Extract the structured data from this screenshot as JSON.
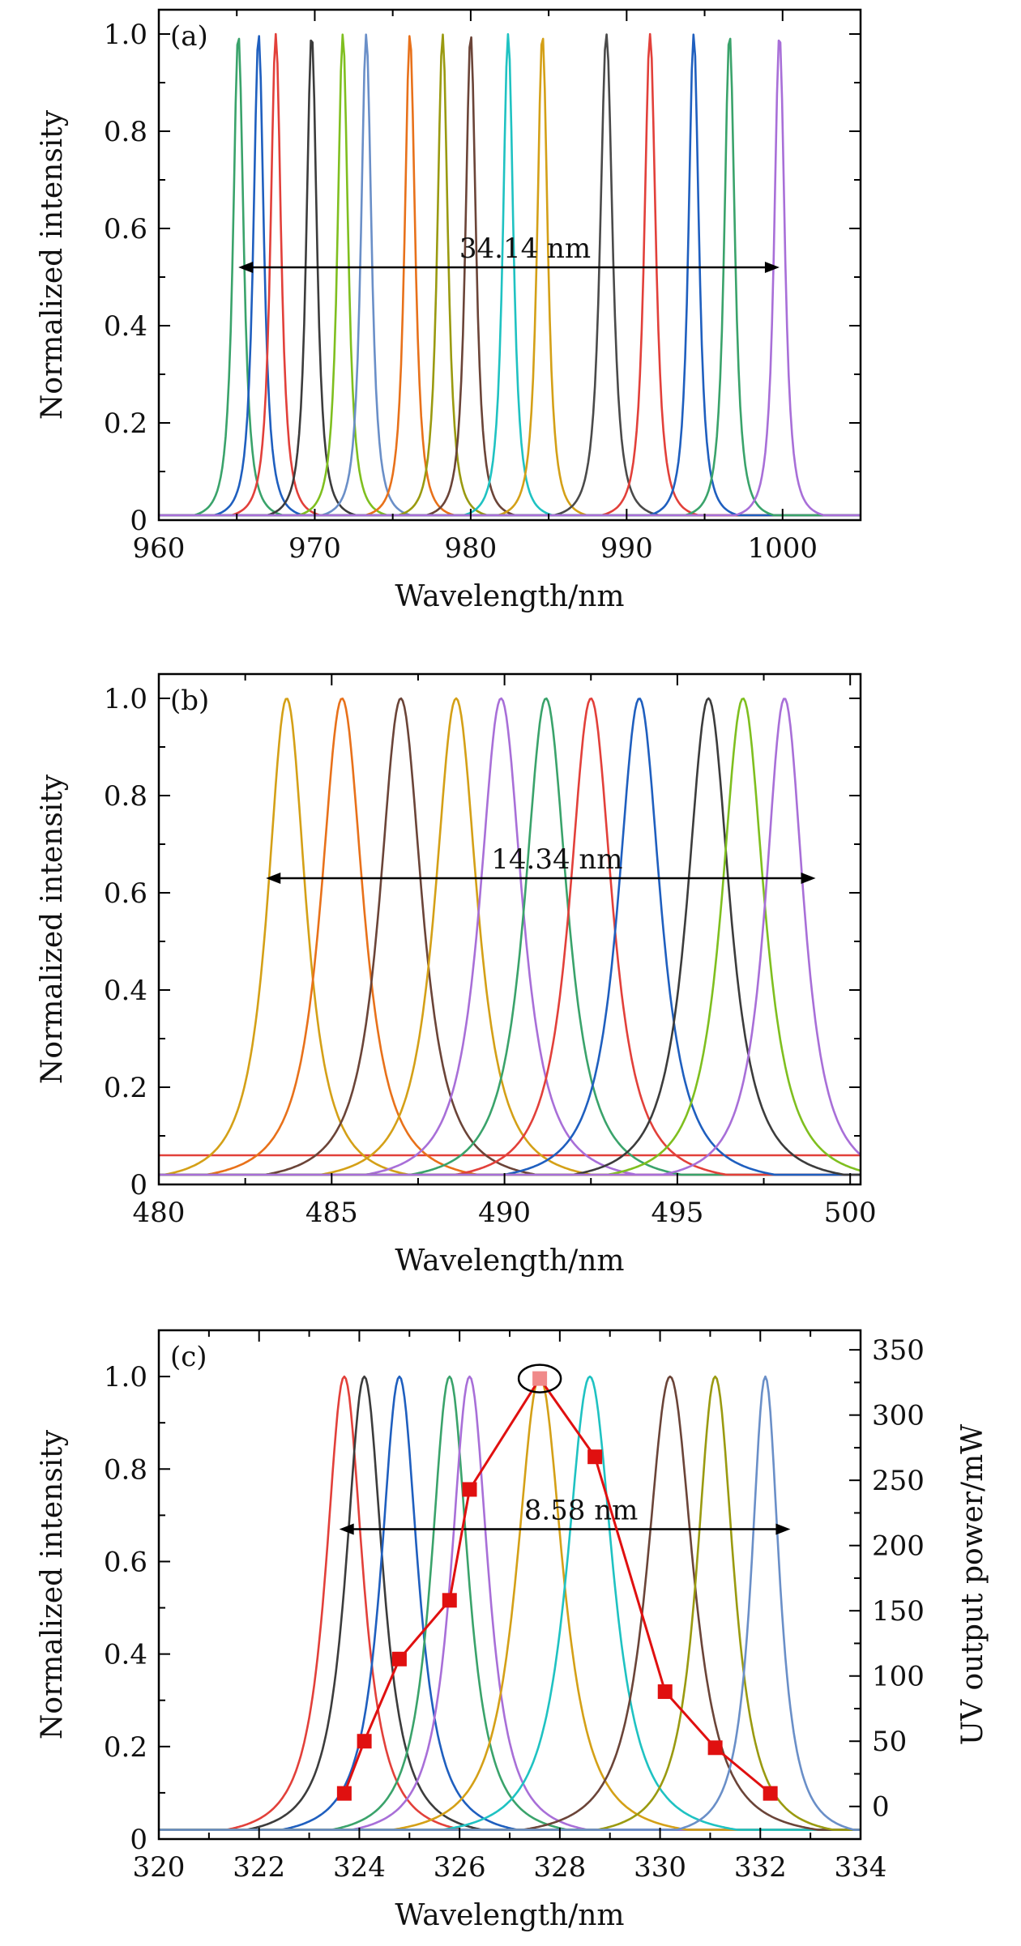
{
  "chart_data": [
    {
      "type": "line",
      "panel_label": "(a)",
      "xlabel": "Wavelength/nm",
      "ylabel": "Normalized intensity",
      "xlim": [
        960,
        1005
      ],
      "ylim": [
        0,
        1.05
      ],
      "x_ticks": [
        960,
        970,
        980,
        990,
        1000
      ],
      "y_ticks": [
        0,
        0.2,
        0.4,
        0.6,
        0.8,
        1.0
      ],
      "x_tick_labels": [
        "960",
        "970",
        "980",
        "990",
        "1000"
      ],
      "y_tick_labels": [
        "0",
        "0.2",
        "0.4",
        "0.6",
        "0.8",
        "1.0"
      ],
      "annotation": {
        "text": "34.14 nm",
        "x_start": 965.1,
        "x_end": 999.8,
        "y": 0.52
      },
      "baseline": 0.01,
      "series": [
        {
          "name": "965.1 nm",
          "peak": 965.1,
          "width": 0.55,
          "color": "#3aa36b"
        },
        {
          "name": "966.4 nm",
          "peak": 966.4,
          "width": 0.55,
          "color": "#1f5fbf"
        },
        {
          "name": "967.5 nm",
          "peak": 967.5,
          "width": 0.55,
          "color": "#e2403a"
        },
        {
          "name": "969.8 nm",
          "peak": 969.8,
          "width": 0.55,
          "color": "#3c3c3c"
        },
        {
          "name": "971.8 nm",
          "peak": 971.8,
          "width": 0.55,
          "color": "#7fbf1f"
        },
        {
          "name": "973.3 nm",
          "peak": 973.3,
          "width": 0.55,
          "color": "#6a8fc8"
        },
        {
          "name": "976.1 nm",
          "peak": 976.1,
          "width": 0.55,
          "color": "#e8711a"
        },
        {
          "name": "978.2 nm",
          "peak": 978.2,
          "width": 0.55,
          "color": "#9a9a10"
        },
        {
          "name": "980.0 nm",
          "peak": 980.0,
          "width": 0.55,
          "color": "#6b4438"
        },
        {
          "name": "982.4 nm",
          "peak": 982.4,
          "width": 0.55,
          "color": "#1fc2c2"
        },
        {
          "name": "984.6 nm",
          "peak": 984.6,
          "width": 0.55,
          "color": "#d4a017"
        },
        {
          "name": "988.7 nm",
          "peak": 988.7,
          "width": 0.65,
          "color": "#4a4a4a"
        },
        {
          "name": "991.5 nm",
          "peak": 991.5,
          "width": 0.6,
          "color": "#e2403a"
        },
        {
          "name": "994.3 nm",
          "peak": 994.3,
          "width": 0.55,
          "color": "#1f5fbf"
        },
        {
          "name": "996.6 nm",
          "peak": 996.6,
          "width": 0.55,
          "color": "#3aa36b"
        },
        {
          "name": "999.8 nm",
          "peak": 999.8,
          "width": 0.55,
          "color": "#a86fd8"
        }
      ]
    },
    {
      "type": "line",
      "panel_label": "(b)",
      "xlabel": "Wavelength/nm",
      "ylabel": "Normalized intensity",
      "xlim": [
        480,
        500.3
      ],
      "ylim": [
        0,
        1.05
      ],
      "x_ticks": [
        480,
        485,
        490,
        495,
        500
      ],
      "y_ticks": [
        0,
        0.2,
        0.4,
        0.6,
        0.8,
        1.0
      ],
      "x_tick_labels": [
        "480",
        "485",
        "490",
        "495",
        "500"
      ],
      "y_tick_labels": [
        "0",
        "0.2",
        "0.4",
        "0.6",
        "0.8",
        "1.0"
      ],
      "annotation": {
        "text": "14.34 nm",
        "x_start": 483.1,
        "x_end": 499.0,
        "y": 0.63
      },
      "baseline": 0.02,
      "series": [
        {
          "name": "483.7 nm",
          "peak": 483.7,
          "width": 0.9,
          "color": "#d4a017"
        },
        {
          "name": "485.3 nm",
          "peak": 485.3,
          "width": 1.0,
          "color": "#e8711a"
        },
        {
          "name": "487.0 nm",
          "peak": 487.0,
          "width": 1.0,
          "color": "#6b4438"
        },
        {
          "name": "488.6 nm",
          "peak": 488.6,
          "width": 1.0,
          "color": "#d4a017"
        },
        {
          "name": "489.9 nm",
          "peak": 489.9,
          "width": 1.0,
          "color": "#a86fd8"
        },
        {
          "name": "491.2 nm",
          "peak": 491.2,
          "width": 1.0,
          "color": "#3aa36b"
        },
        {
          "name": "492.5 nm",
          "peak": 492.5,
          "width": 1.0,
          "color": "#e2403a"
        },
        {
          "name": "493.9 nm",
          "peak": 493.9,
          "width": 1.0,
          "color": "#1f5fbf"
        },
        {
          "name": "495.9 nm",
          "peak": 495.9,
          "width": 1.0,
          "color": "#3c3c3c"
        },
        {
          "name": "496.9 nm",
          "peak": 496.9,
          "width": 1.0,
          "color": "#7fbf1f"
        },
        {
          "name": "498.1 nm",
          "peak": 498.1,
          "width": 0.9,
          "color": "#a86fd8"
        }
      ],
      "reference_line": {
        "name": "background",
        "value": 0.06,
        "color": "#e2403a"
      }
    },
    {
      "type": "line",
      "panel_label": "(c)",
      "xlabel": "Wavelength/nm",
      "ylabel": "Normalized intensity",
      "y2label": "UV output power/mW",
      "xlim": [
        320,
        334
      ],
      "ylim": [
        0,
        1.1
      ],
      "y2lim": [
        -25,
        365
      ],
      "x_ticks": [
        320,
        322,
        324,
        326,
        328,
        330,
        332,
        334
      ],
      "y_ticks": [
        0,
        0.2,
        0.4,
        0.6,
        0.8,
        1.0
      ],
      "y2_ticks": [
        0,
        50,
        100,
        150,
        200,
        250,
        300,
        350
      ],
      "x_tick_labels": [
        "320",
        "322",
        "324",
        "326",
        "328",
        "330",
        "332",
        "334"
      ],
      "y_tick_labels": [
        "0",
        "0.2",
        "0.4",
        "0.6",
        "0.8",
        "1.0"
      ],
      "y2_tick_labels": [
        "0",
        "50",
        "100",
        "150",
        "200",
        "250",
        "300",
        "350"
      ],
      "annotation": {
        "text": "8.58 nm",
        "x_start": 323.6,
        "x_end": 332.6,
        "y": 0.67
      },
      "baseline": 0.02,
      "series": [
        {
          "name": "323.7 nm",
          "peak": 323.7,
          "width": 0.6,
          "color": "#e2403a"
        },
        {
          "name": "324.1 nm",
          "peak": 324.1,
          "width": 0.6,
          "color": "#3c3c3c"
        },
        {
          "name": "324.8 nm",
          "peak": 324.8,
          "width": 0.6,
          "color": "#1f5fbf"
        },
        {
          "name": "325.8 nm",
          "peak": 325.8,
          "width": 0.6,
          "color": "#3aa36b"
        },
        {
          "name": "326.2 nm",
          "peak": 326.2,
          "width": 0.6,
          "color": "#a86fd8"
        },
        {
          "name": "327.6 nm",
          "peak": 327.6,
          "width": 0.75,
          "color": "#d4a017"
        },
        {
          "name": "328.6 nm",
          "peak": 328.6,
          "width": 0.75,
          "color": "#1fc2c2"
        },
        {
          "name": "330.2 nm",
          "peak": 330.2,
          "width": 0.75,
          "color": "#6b4438"
        },
        {
          "name": "331.1 nm",
          "peak": 331.1,
          "width": 0.6,
          "color": "#9a9a10"
        },
        {
          "name": "332.1 nm",
          "peak": 332.1,
          "width": 0.45,
          "color": "#6a8fc8"
        }
      ],
      "power_series": {
        "name": "UV output power",
        "axis": "right",
        "color": "#e01010",
        "x": [
          323.7,
          324.1,
          324.8,
          325.8,
          326.2,
          327.6,
          328.7,
          330.1,
          331.1,
          332.2
        ],
        "y": [
          10,
          50,
          113,
          158,
          243,
          328,
          268,
          88,
          45,
          10
        ],
        "highlight_index": 5
      }
    }
  ]
}
